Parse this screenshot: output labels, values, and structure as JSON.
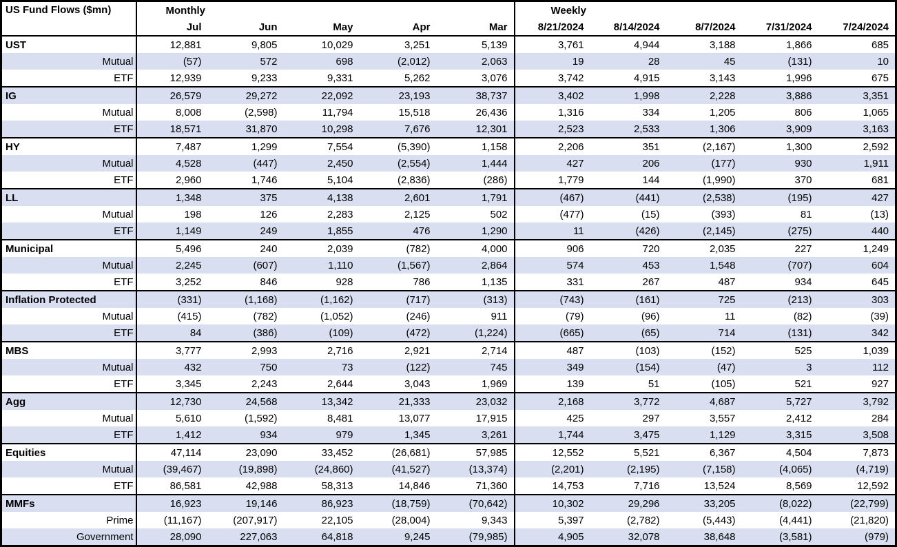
{
  "title": "US Fund Flows ($mn)",
  "sections": [
    {
      "label": "Monthly",
      "columns": [
        "Jul",
        "Jun",
        "May",
        "Apr",
        "Mar"
      ]
    },
    {
      "label": "Weekly",
      "columns": [
        "8/21/2024",
        "8/14/2024",
        "8/7/2024",
        "7/31/2024",
        "7/24/2024"
      ]
    }
  ],
  "groups": [
    {
      "name": "UST",
      "monthly": [
        "12,881",
        "9,805",
        "10,029",
        "3,251",
        "5,139"
      ],
      "weekly": [
        "3,761",
        "4,944",
        "3,188",
        "1,866",
        "685"
      ],
      "rows": [
        {
          "label": "Mutual",
          "monthly": [
            "(57)",
            "572",
            "698",
            "(2,012)",
            "2,063"
          ],
          "weekly": [
            "19",
            "28",
            "45",
            "(131)",
            "10"
          ]
        },
        {
          "label": "ETF",
          "monthly": [
            "12,939",
            "9,233",
            "9,331",
            "5,262",
            "3,076"
          ],
          "weekly": [
            "3,742",
            "4,915",
            "3,143",
            "1,996",
            "675"
          ]
        }
      ]
    },
    {
      "name": "IG",
      "monthly": [
        "26,579",
        "29,272",
        "22,092",
        "23,193",
        "38,737"
      ],
      "weekly": [
        "3,402",
        "1,998",
        "2,228",
        "3,886",
        "3,351"
      ],
      "rows": [
        {
          "label": "Mutual",
          "monthly": [
            "8,008",
            "(2,598)",
            "11,794",
            "15,518",
            "26,436"
          ],
          "weekly": [
            "1,316",
            "334",
            "1,205",
            "806",
            "1,065"
          ]
        },
        {
          "label": "ETF",
          "monthly": [
            "18,571",
            "31,870",
            "10,298",
            "7,676",
            "12,301"
          ],
          "weekly": [
            "2,523",
            "2,533",
            "1,306",
            "3,909",
            "3,163"
          ]
        }
      ]
    },
    {
      "name": "HY",
      "monthly": [
        "7,487",
        "1,299",
        "7,554",
        "(5,390)",
        "1,158"
      ],
      "weekly": [
        "2,206",
        "351",
        "(2,167)",
        "1,300",
        "2,592"
      ],
      "rows": [
        {
          "label": "Mutual",
          "monthly": [
            "4,528",
            "(447)",
            "2,450",
            "(2,554)",
            "1,444"
          ],
          "weekly": [
            "427",
            "206",
            "(177)",
            "930",
            "1,911"
          ]
        },
        {
          "label": "ETF",
          "monthly": [
            "2,960",
            "1,746",
            "5,104",
            "(2,836)",
            "(286)"
          ],
          "weekly": [
            "1,779",
            "144",
            "(1,990)",
            "370",
            "681"
          ]
        }
      ]
    },
    {
      "name": "LL",
      "monthly": [
        "1,348",
        "375",
        "4,138",
        "2,601",
        "1,791"
      ],
      "weekly": [
        "(467)",
        "(441)",
        "(2,538)",
        "(195)",
        "427"
      ],
      "rows": [
        {
          "label": "Mutual",
          "monthly": [
            "198",
            "126",
            "2,283",
            "2,125",
            "502"
          ],
          "weekly": [
            "(477)",
            "(15)",
            "(393)",
            "81",
            "(13)"
          ]
        },
        {
          "label": "ETF",
          "monthly": [
            "1,149",
            "249",
            "1,855",
            "476",
            "1,290"
          ],
          "weekly": [
            "11",
            "(426)",
            "(2,145)",
            "(275)",
            "440"
          ]
        }
      ]
    },
    {
      "name": "Municipal",
      "monthly": [
        "5,496",
        "240",
        "2,039",
        "(782)",
        "4,000"
      ],
      "weekly": [
        "906",
        "720",
        "2,035",
        "227",
        "1,249"
      ],
      "rows": [
        {
          "label": "Mutual",
          "monthly": [
            "2,245",
            "(607)",
            "1,110",
            "(1,567)",
            "2,864"
          ],
          "weekly": [
            "574",
            "453",
            "1,548",
            "(707)",
            "604"
          ]
        },
        {
          "label": "ETF",
          "monthly": [
            "3,252",
            "846",
            "928",
            "786",
            "1,135"
          ],
          "weekly": [
            "331",
            "267",
            "487",
            "934",
            "645"
          ]
        }
      ]
    },
    {
      "name": "Inflation Protected",
      "monthly": [
        "(331)",
        "(1,168)",
        "(1,162)",
        "(717)",
        "(313)"
      ],
      "weekly": [
        "(743)",
        "(161)",
        "725",
        "(213)",
        "303"
      ],
      "rows": [
        {
          "label": "Mutual",
          "monthly": [
            "(415)",
            "(782)",
            "(1,052)",
            "(246)",
            "911"
          ],
          "weekly": [
            "(79)",
            "(96)",
            "11",
            "(82)",
            "(39)"
          ]
        },
        {
          "label": "ETF",
          "monthly": [
            "84",
            "(386)",
            "(109)",
            "(472)",
            "(1,224)"
          ],
          "weekly": [
            "(665)",
            "(65)",
            "714",
            "(131)",
            "342"
          ]
        }
      ]
    },
    {
      "name": "MBS",
      "monthly": [
        "3,777",
        "2,993",
        "2,716",
        "2,921",
        "2,714"
      ],
      "weekly": [
        "487",
        "(103)",
        "(152)",
        "525",
        "1,039"
      ],
      "rows": [
        {
          "label": "Mutual",
          "monthly": [
            "432",
            "750",
            "73",
            "(122)",
            "745"
          ],
          "weekly": [
            "349",
            "(154)",
            "(47)",
            "3",
            "112"
          ]
        },
        {
          "label": "ETF",
          "monthly": [
            "3,345",
            "2,243",
            "2,644",
            "3,043",
            "1,969"
          ],
          "weekly": [
            "139",
            "51",
            "(105)",
            "521",
            "927"
          ]
        }
      ]
    },
    {
      "name": "Agg",
      "monthly": [
        "12,730",
        "24,568",
        "13,342",
        "21,333",
        "23,032"
      ],
      "weekly": [
        "2,168",
        "3,772",
        "4,687",
        "5,727",
        "3,792"
      ],
      "rows": [
        {
          "label": "Mutual",
          "monthly": [
            "5,610",
            "(1,592)",
            "8,481",
            "13,077",
            "17,915"
          ],
          "weekly": [
            "425",
            "297",
            "3,557",
            "2,412",
            "284"
          ]
        },
        {
          "label": "ETF",
          "monthly": [
            "1,412",
            "934",
            "979",
            "1,345",
            "3,261"
          ],
          "weekly": [
            "1,744",
            "3,475",
            "1,129",
            "3,315",
            "3,508"
          ]
        }
      ]
    },
    {
      "name": "Equities",
      "monthly": [
        "47,114",
        "23,090",
        "33,452",
        "(26,681)",
        "57,985"
      ],
      "weekly": [
        "12,552",
        "5,521",
        "6,367",
        "4,504",
        "7,873"
      ],
      "rows": [
        {
          "label": "Mutual",
          "monthly": [
            "(39,467)",
            "(19,898)",
            "(24,860)",
            "(41,527)",
            "(13,374)"
          ],
          "weekly": [
            "(2,201)",
            "(2,195)",
            "(7,158)",
            "(4,065)",
            "(4,719)"
          ]
        },
        {
          "label": "ETF",
          "monthly": [
            "86,581",
            "42,988",
            "58,313",
            "14,846",
            "71,360"
          ],
          "weekly": [
            "14,753",
            "7,716",
            "13,524",
            "8,569",
            "12,592"
          ]
        }
      ]
    },
    {
      "name": "MMFs",
      "monthly": [
        "16,923",
        "19,146",
        "86,923",
        "(18,759)",
        "(70,642)"
      ],
      "weekly": [
        "10,302",
        "29,296",
        "33,205",
        "(8,022)",
        "(22,799)"
      ],
      "rows": [
        {
          "label": "Prime",
          "monthly": [
            "(11,167)",
            "(207,917)",
            "22,105",
            "(28,004)",
            "9,343"
          ],
          "weekly": [
            "5,397",
            "(2,782)",
            "(5,443)",
            "(4,441)",
            "(21,820)"
          ]
        },
        {
          "label": "Government",
          "monthly": [
            "28,090",
            "227,063",
            "64,818",
            "9,245",
            "(79,985)"
          ],
          "weekly": [
            "4,905",
            "32,078",
            "38,648",
            "(3,581)",
            "(979)"
          ]
        }
      ]
    }
  ],
  "colors": {
    "row_shade": "#D9DFF0",
    "border": "#000000",
    "background": "#FFFFFF",
    "text": "#000000"
  }
}
